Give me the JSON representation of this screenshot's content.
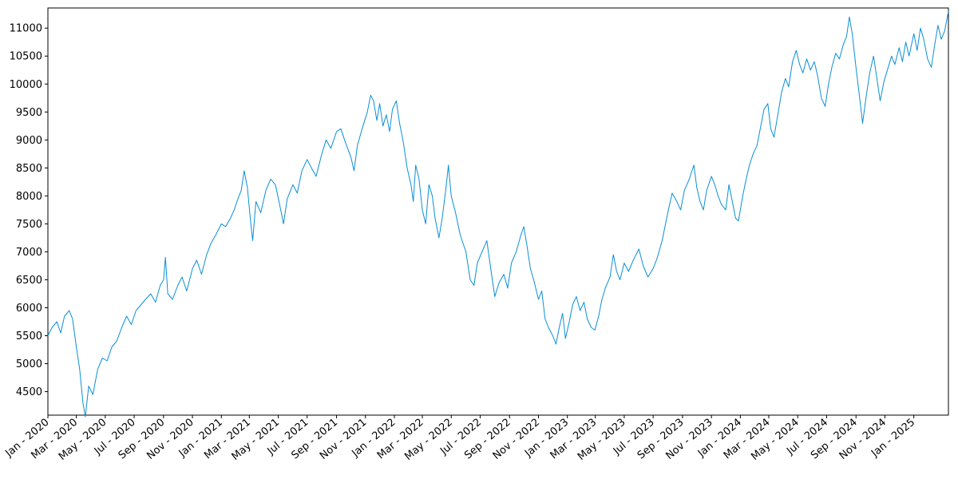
{
  "chart_data": {
    "type": "line",
    "title": "",
    "xlabel": "",
    "ylabel": "",
    "grid": false,
    "line_color": "#0a8fd6",
    "x_range": [
      "2020-01-01",
      "2025-03-15"
    ],
    "ylim": [
      4080,
      11360
    ],
    "y_ticks": [
      4500,
      5000,
      5500,
      6000,
      6500,
      7000,
      7500,
      8000,
      8500,
      9000,
      9500,
      10000,
      10500,
      11000
    ],
    "x_ticks": [
      {
        "date": "2020-01-01",
        "label": "Jan - 2020"
      },
      {
        "date": "2020-03-01",
        "label": "Mar - 2020"
      },
      {
        "date": "2020-05-01",
        "label": "May - 2020"
      },
      {
        "date": "2020-07-01",
        "label": "Jul - 2020"
      },
      {
        "date": "2020-09-01",
        "label": "Sep - 2020"
      },
      {
        "date": "2020-11-01",
        "label": "Nov - 2020"
      },
      {
        "date": "2021-01-01",
        "label": "Jan - 2021"
      },
      {
        "date": "2021-03-01",
        "label": "Mar - 2021"
      },
      {
        "date": "2021-05-01",
        "label": "May - 2021"
      },
      {
        "date": "2021-07-01",
        "label": "Jul - 2021"
      },
      {
        "date": "2021-09-01",
        "label": "Sep - 2021"
      },
      {
        "date": "2021-11-01",
        "label": "Nov - 2021"
      },
      {
        "date": "2022-01-01",
        "label": "Jan - 2022"
      },
      {
        "date": "2022-03-01",
        "label": "Mar - 2022"
      },
      {
        "date": "2022-05-01",
        "label": "May - 2022"
      },
      {
        "date": "2022-07-01",
        "label": "Jul - 2022"
      },
      {
        "date": "2022-09-01",
        "label": "Sep - 2022"
      },
      {
        "date": "2022-11-01",
        "label": "Nov - 2022"
      },
      {
        "date": "2023-01-01",
        "label": "Jan - 2023"
      },
      {
        "date": "2023-03-01",
        "label": "Mar - 2023"
      },
      {
        "date": "2023-05-01",
        "label": "May - 2023"
      },
      {
        "date": "2023-07-01",
        "label": "Jul - 2023"
      },
      {
        "date": "2023-09-01",
        "label": "Sep - 2023"
      },
      {
        "date": "2023-11-01",
        "label": "Nov - 2023"
      },
      {
        "date": "2024-01-01",
        "label": "Jan - 2024"
      },
      {
        "date": "2024-03-01",
        "label": "Mar - 2024"
      },
      {
        "date": "2024-05-01",
        "label": "May - 2024"
      },
      {
        "date": "2024-07-01",
        "label": "Jul - 2024"
      },
      {
        "date": "2024-09-01",
        "label": "Sep - 2024"
      },
      {
        "date": "2024-11-01",
        "label": "Nov - 2024"
      },
      {
        "date": "2025-01-01",
        "label": "Jan - 2025"
      }
    ],
    "series": [
      {
        "points": [
          [
            "2020-01-01",
            5500
          ],
          [
            "2020-01-10",
            5650
          ],
          [
            "2020-01-20",
            5750
          ],
          [
            "2020-01-28",
            5550
          ],
          [
            "2020-02-05",
            5850
          ],
          [
            "2020-02-15",
            5950
          ],
          [
            "2020-02-22",
            5800
          ],
          [
            "2020-03-01",
            5300
          ],
          [
            "2020-03-08",
            4900
          ],
          [
            "2020-03-15",
            4300
          ],
          [
            "2020-03-20",
            4050
          ],
          [
            "2020-03-27",
            4600
          ],
          [
            "2020-04-05",
            4450
          ],
          [
            "2020-04-15",
            4900
          ],
          [
            "2020-04-25",
            5100
          ],
          [
            "2020-05-05",
            5050
          ],
          [
            "2020-05-15",
            5300
          ],
          [
            "2020-05-25",
            5400
          ],
          [
            "2020-06-05",
            5650
          ],
          [
            "2020-06-15",
            5850
          ],
          [
            "2020-06-25",
            5700
          ],
          [
            "2020-07-05",
            5950
          ],
          [
            "2020-07-15",
            6050
          ],
          [
            "2020-07-25",
            6150
          ],
          [
            "2020-08-05",
            6250
          ],
          [
            "2020-08-15",
            6100
          ],
          [
            "2020-08-25",
            6400
          ],
          [
            "2020-09-01",
            6500
          ],
          [
            "2020-09-05",
            6900
          ],
          [
            "2020-09-10",
            6250
          ],
          [
            "2020-09-20",
            6150
          ],
          [
            "2020-10-01",
            6400
          ],
          [
            "2020-10-10",
            6550
          ],
          [
            "2020-10-20",
            6300
          ],
          [
            "2020-11-01",
            6700
          ],
          [
            "2020-11-10",
            6850
          ],
          [
            "2020-11-20",
            6600
          ],
          [
            "2020-12-01",
            6950
          ],
          [
            "2020-12-10",
            7150
          ],
          [
            "2020-12-20",
            7300
          ],
          [
            "2021-01-01",
            7500
          ],
          [
            "2021-01-10",
            7450
          ],
          [
            "2021-01-20",
            7600
          ],
          [
            "2021-01-28",
            7750
          ],
          [
            "2021-02-05",
            7950
          ],
          [
            "2021-02-12",
            8100
          ],
          [
            "2021-02-18",
            8450
          ],
          [
            "2021-02-25",
            8150
          ],
          [
            "2021-03-03",
            7600
          ],
          [
            "2021-03-08",
            7200
          ],
          [
            "2021-03-15",
            7900
          ],
          [
            "2021-03-25",
            7700
          ],
          [
            "2021-04-05",
            8100
          ],
          [
            "2021-04-15",
            8300
          ],
          [
            "2021-04-25",
            8200
          ],
          [
            "2021-05-05",
            7800
          ],
          [
            "2021-05-12",
            7500
          ],
          [
            "2021-05-20",
            7950
          ],
          [
            "2021-06-01",
            8200
          ],
          [
            "2021-06-10",
            8050
          ],
          [
            "2021-06-20",
            8450
          ],
          [
            "2021-07-01",
            8650
          ],
          [
            "2021-07-10",
            8500
          ],
          [
            "2021-07-20",
            8350
          ],
          [
            "2021-08-01",
            8750
          ],
          [
            "2021-08-10",
            9000
          ],
          [
            "2021-08-20",
            8850
          ],
          [
            "2021-09-01",
            9150
          ],
          [
            "2021-09-10",
            9200
          ],
          [
            "2021-09-20",
            8950
          ],
          [
            "2021-10-01",
            8700
          ],
          [
            "2021-10-08",
            8450
          ],
          [
            "2021-10-15",
            8900
          ],
          [
            "2021-10-25",
            9200
          ],
          [
            "2021-11-05",
            9500
          ],
          [
            "2021-11-12",
            9800
          ],
          [
            "2021-11-18",
            9700
          ],
          [
            "2021-11-25",
            9350
          ],
          [
            "2021-12-01",
            9650
          ],
          [
            "2021-12-08",
            9250
          ],
          [
            "2021-12-15",
            9450
          ],
          [
            "2021-12-22",
            9150
          ],
          [
            "2021-12-28",
            9550
          ],
          [
            "2022-01-05",
            9700
          ],
          [
            "2022-01-12",
            9300
          ],
          [
            "2022-01-20",
            8950
          ],
          [
            "2022-01-28",
            8500
          ],
          [
            "2022-02-05",
            8200
          ],
          [
            "2022-02-10",
            7900
          ],
          [
            "2022-02-15",
            8550
          ],
          [
            "2022-02-22",
            8300
          ],
          [
            "2022-03-01",
            7750
          ],
          [
            "2022-03-08",
            7500
          ],
          [
            "2022-03-15",
            8200
          ],
          [
            "2022-03-22",
            8000
          ],
          [
            "2022-03-28",
            7600
          ],
          [
            "2022-04-05",
            7250
          ],
          [
            "2022-04-12",
            7600
          ],
          [
            "2022-04-20",
            8150
          ],
          [
            "2022-04-25",
            8550
          ],
          [
            "2022-05-01",
            8000
          ],
          [
            "2022-05-10",
            7700
          ],
          [
            "2022-05-20",
            7300
          ],
          [
            "2022-06-01",
            7000
          ],
          [
            "2022-06-10",
            6500
          ],
          [
            "2022-06-18",
            6400
          ],
          [
            "2022-06-25",
            6800
          ],
          [
            "2022-07-05",
            7000
          ],
          [
            "2022-07-15",
            7200
          ],
          [
            "2022-07-25",
            6600
          ],
          [
            "2022-08-01",
            6200
          ],
          [
            "2022-08-10",
            6450
          ],
          [
            "2022-08-20",
            6600
          ],
          [
            "2022-08-28",
            6350
          ],
          [
            "2022-09-05",
            6800
          ],
          [
            "2022-09-15",
            7000
          ],
          [
            "2022-09-25",
            7300
          ],
          [
            "2022-10-01",
            7450
          ],
          [
            "2022-10-08",
            7100
          ],
          [
            "2022-10-15",
            6700
          ],
          [
            "2022-10-22",
            6500
          ],
          [
            "2022-11-01",
            6150
          ],
          [
            "2022-11-08",
            6300
          ],
          [
            "2022-11-15",
            5800
          ],
          [
            "2022-11-22",
            5650
          ],
          [
            "2022-12-01",
            5500
          ],
          [
            "2022-12-08",
            5350
          ],
          [
            "2022-12-15",
            5650
          ],
          [
            "2022-12-22",
            5900
          ],
          [
            "2022-12-28",
            5450
          ],
          [
            "2023-01-05",
            5750
          ],
          [
            "2023-01-12",
            6050
          ],
          [
            "2023-01-20",
            6200
          ],
          [
            "2023-01-28",
            5950
          ],
          [
            "2023-02-05",
            6100
          ],
          [
            "2023-02-12",
            5800
          ],
          [
            "2023-02-20",
            5650
          ],
          [
            "2023-02-28",
            5600
          ],
          [
            "2023-03-08",
            5850
          ],
          [
            "2023-03-15",
            6150
          ],
          [
            "2023-03-22",
            6350
          ],
          [
            "2023-04-01",
            6550
          ],
          [
            "2023-04-08",
            6950
          ],
          [
            "2023-04-15",
            6650
          ],
          [
            "2023-04-22",
            6500
          ],
          [
            "2023-05-01",
            6800
          ],
          [
            "2023-05-10",
            6650
          ],
          [
            "2023-05-20",
            6850
          ],
          [
            "2023-06-01",
            7050
          ],
          [
            "2023-06-10",
            6750
          ],
          [
            "2023-06-20",
            6550
          ],
          [
            "2023-07-01",
            6700
          ],
          [
            "2023-07-10",
            6900
          ],
          [
            "2023-07-20",
            7200
          ],
          [
            "2023-08-01",
            7700
          ],
          [
            "2023-08-10",
            8050
          ],
          [
            "2023-08-20",
            7900
          ],
          [
            "2023-08-28",
            7750
          ],
          [
            "2023-09-05",
            8100
          ],
          [
            "2023-09-15",
            8300
          ],
          [
            "2023-09-25",
            8550
          ],
          [
            "2023-10-01",
            8150
          ],
          [
            "2023-10-08",
            7900
          ],
          [
            "2023-10-15",
            7750
          ],
          [
            "2023-10-22",
            8100
          ],
          [
            "2023-11-01",
            8350
          ],
          [
            "2023-11-08",
            8200
          ],
          [
            "2023-11-15",
            8000
          ],
          [
            "2023-11-22",
            7850
          ],
          [
            "2023-12-01",
            7750
          ],
          [
            "2023-12-08",
            8200
          ],
          [
            "2023-12-15",
            7900
          ],
          [
            "2023-12-22",
            7600
          ],
          [
            "2023-12-28",
            7550
          ],
          [
            "2024-01-05",
            7950
          ],
          [
            "2024-01-12",
            8250
          ],
          [
            "2024-01-20",
            8550
          ],
          [
            "2024-01-28",
            8750
          ],
          [
            "2024-02-05",
            8900
          ],
          [
            "2024-02-12",
            9200
          ],
          [
            "2024-02-20",
            9550
          ],
          [
            "2024-02-28",
            9650
          ],
          [
            "2024-03-05",
            9200
          ],
          [
            "2024-03-12",
            9050
          ],
          [
            "2024-03-20",
            9450
          ],
          [
            "2024-03-28",
            9850
          ],
          [
            "2024-04-05",
            10100
          ],
          [
            "2024-04-12",
            9950
          ],
          [
            "2024-04-20",
            10400
          ],
          [
            "2024-04-28",
            10600
          ],
          [
            "2024-05-05",
            10350
          ],
          [
            "2024-05-12",
            10200
          ],
          [
            "2024-05-20",
            10450
          ],
          [
            "2024-05-28",
            10250
          ],
          [
            "2024-06-05",
            10400
          ],
          [
            "2024-06-12",
            10150
          ],
          [
            "2024-06-20",
            9750
          ],
          [
            "2024-06-28",
            9600
          ],
          [
            "2024-07-05",
            10000
          ],
          [
            "2024-07-12",
            10300
          ],
          [
            "2024-07-20",
            10550
          ],
          [
            "2024-07-28",
            10450
          ],
          [
            "2024-08-05",
            10700
          ],
          [
            "2024-08-12",
            10850
          ],
          [
            "2024-08-18",
            11200
          ],
          [
            "2024-08-24",
            10900
          ],
          [
            "2024-09-01",
            10300
          ],
          [
            "2024-09-08",
            9800
          ],
          [
            "2024-09-15",
            9300
          ],
          [
            "2024-09-22",
            9750
          ],
          [
            "2024-09-30",
            10200
          ],
          [
            "2024-10-08",
            10500
          ],
          [
            "2024-10-15",
            10100
          ],
          [
            "2024-10-22",
            9700
          ],
          [
            "2024-10-30",
            10050
          ],
          [
            "2024-11-08",
            10300
          ],
          [
            "2024-11-15",
            10500
          ],
          [
            "2024-11-22",
            10350
          ],
          [
            "2024-12-01",
            10650
          ],
          [
            "2024-12-08",
            10400
          ],
          [
            "2024-12-15",
            10750
          ],
          [
            "2024-12-22",
            10500
          ],
          [
            "2025-01-01",
            10900
          ],
          [
            "2025-01-08",
            10600
          ],
          [
            "2025-01-15",
            11000
          ],
          [
            "2025-01-22",
            10800
          ],
          [
            "2025-01-30",
            10450
          ],
          [
            "2025-02-07",
            10300
          ],
          [
            "2025-02-14",
            10700
          ],
          [
            "2025-02-21",
            11050
          ],
          [
            "2025-02-28",
            10800
          ],
          [
            "2025-03-07",
            10950
          ],
          [
            "2025-03-15",
            11300
          ]
        ]
      }
    ]
  }
}
